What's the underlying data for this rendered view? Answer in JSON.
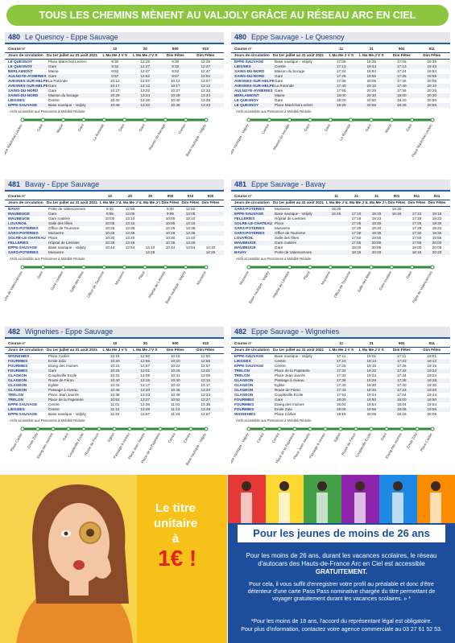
{
  "header": {
    "title": "TOUS LES CHEMINS MÈNENT AU VALJOLY GRÂCE AU RÉSEAU ARC EN CIEL"
  },
  "panels": [
    {
      "line": "480",
      "title": "Le Quesnoy - Eppe Sauvage",
      "course_label": "Course n°",
      "days_label": "Jours de circulation",
      "period": "Du 1er juillet au 31 août 2021",
      "courses": [
        "10",
        "20",
        "900",
        "910"
      ],
      "days": [
        "L Ma Me J V S",
        "L Ma Me J V S",
        "Dim Fêtes",
        "Dim Fêtes"
      ],
      "rows": [
        [
          "LE QUESNOY",
          "Place Maréchal Leclerc",
          "9:30",
          "12:25",
          "9:30",
          "12:25"
        ],
        [
          "LE QUESNOY",
          "Gare",
          "9:32",
          "12:27",
          "9:32",
          "12:27"
        ],
        [
          "BERLAIMONT",
          "Mairie",
          "9:52",
          "12:47",
          "9:52",
          "12:47"
        ],
        [
          "AULNOYE-AYMERIES",
          "Gare",
          "9:57",
          "12:52",
          "9:57",
          "12:52"
        ],
        [
          "AVESNES-SUR-HELPE",
          "La Rotonde",
          "10:12",
          "13:07",
          "10:12",
          "13:07"
        ],
        [
          "AVESNES-SUR-HELPE",
          "Gare",
          "10:17",
          "13:12",
          "10:17",
          "13:12"
        ],
        [
          "SAINS-DU-NORD",
          "Gare",
          "10:27",
          "13:22",
          "10:27",
          "13:22"
        ],
        [
          "SAINS-DU-NORD",
          "Maison du bocage",
          "10:29",
          "13:24",
          "10:29",
          "13:24"
        ],
        [
          "LIESSIES",
          "Centre",
          "10:40",
          "13:35",
          "10:40",
          "13:35"
        ],
        [
          "EPPE-SAUVAGE",
          "Base nautique - Valjoly",
          "10:48",
          "13:43",
          "10:48",
          "13:43"
        ]
      ],
      "note": "Arrêt accessible aux Personnes à Mobilité Réduite"
    },
    {
      "line": "480",
      "title": "Eppe Sauvage - Le Quesnoy",
      "course_label": "Course n°",
      "days_label": "Jours de circulation",
      "period": "Du 1er juillet au 31 août 2021",
      "courses": [
        "11",
        "21",
        "901",
        "911"
      ],
      "days": [
        "L Ma Me J V S",
        "L Ma Me J V S",
        "Dim Fêtes",
        "Dim Fêtes"
      ],
      "rows": [
        [
          "EPPE-SAUVAGE",
          "Base nautique - Valjoly",
          "17:05",
          "19:35",
          "17:05",
          "19:35"
        ],
        [
          "LIESSIES",
          "Centre",
          "17:13",
          "19:43",
          "17:13",
          "19:43"
        ],
        [
          "SAINS-DU-NORD",
          "Maison du bocage",
          "17:24",
          "19:54",
          "17:24",
          "19:54"
        ],
        [
          "SAINS-DU-NORD",
          "Gare",
          "17:25",
          "19:55",
          "17:25",
          "19:55"
        ],
        [
          "AVESNES-SUR-HELPE",
          "Gare",
          "17:35",
          "20:05",
          "17:35",
          "20:05"
        ],
        [
          "AVESNES-SUR-HELPE",
          "La Rotonde",
          "17:40",
          "20:10",
          "17:40",
          "20:10"
        ],
        [
          "AULNOYE-AYMERIES",
          "Gare",
          "17:55",
          "20:25",
          "17:55",
          "20:25"
        ],
        [
          "BERLAIMONT",
          "Mairie",
          "18:00",
          "20:30",
          "18:00",
          "20:30"
        ],
        [
          "LE QUESNOY",
          "Gare",
          "18:20",
          "20:50",
          "18:20",
          "20:50"
        ],
        [
          "LE QUESNOY",
          "Place Maréchal Leclerc",
          "18:25",
          "20:55",
          "18:25",
          "20:55"
        ]
      ],
      "note": "Arrêt accessible aux Personnes à Mobilité Réduite"
    },
    {
      "line": "481",
      "title": "Bavay - Eppe Sauvage",
      "course_label": "Course n°",
      "days_label": "Jours de circulation",
      "period": "Du 1er juillet au 31 août 2021",
      "courses": [
        "10",
        "20",
        "30",
        "900",
        "910",
        "920"
      ],
      "days": [
        "L Ma Me J V S",
        "L Ma Me J V S",
        "L Ma Me J V S",
        "Dim Fêtes",
        "Dim Fêtes",
        "Dim Fêtes"
      ],
      "rows": [
        [
          "BAVAY",
          "Porte de Valenciennes",
          "9:40",
          "12:50",
          null,
          "9:40",
          "12:50",
          null
        ],
        [
          "MAUBEUGE",
          "Gare",
          "9:55",
          "13:05",
          null,
          "9:55",
          "13:05",
          null
        ],
        [
          "MAUBEUGE",
          "Gare routière",
          "10:00",
          "13:10",
          null,
          "10:00",
          "13:10",
          null
        ],
        [
          "LOUVROIL",
          "Salle des fêtes",
          "10:05",
          "13:15",
          null,
          "10:05",
          "13:15",
          null
        ],
        [
          "SARS-POTERIES",
          "Office de Tourisme",
          "10:25",
          "13:35",
          null,
          "10:25",
          "13:35",
          null
        ],
        [
          "SARS-POTERIES",
          "Musverre",
          "10:26",
          "13:36",
          null,
          "10:26",
          "13:36",
          null
        ],
        [
          "SOLRE-LE-CHATEAU",
          "Place",
          "10:30",
          "13:40",
          null,
          "10:30",
          "13:40",
          null
        ],
        [
          "FELLERIES",
          "Hôpital de Liessies",
          "10:36",
          "13:46",
          null,
          "10:36",
          "13:46",
          null
        ],
        [
          "EPPE-SAUVAGE",
          "Base nautique - Valjoly",
          "10:44",
          "13:54",
          "14:10",
          "10:44",
          "13:54",
          "14:10"
        ],
        [
          "SARS-POTERIES",
          "Musverre",
          null,
          null,
          "14:25",
          null,
          null,
          "14:25"
        ]
      ],
      "note": "Arrêt accessible aux Personnes à Mobilité Réduite"
    },
    {
      "line": "481",
      "title": "Eppe Sauvage - Bavay",
      "course_label": "Course n°",
      "days_label": "Jours de circulation",
      "period": "Du 1er juillet au 31 août 2021",
      "courses": [
        "11",
        "21",
        "31",
        "901",
        "911",
        "921"
      ],
      "days": [
        "L Ma Me J V S",
        "L Ma Me J V S",
        "L Ma Me J V S",
        "Dim Fêtes",
        "Dim Fêtes",
        "Dim Fêtes"
      ],
      "rows": [
        [
          "SARS-POTERIES",
          "Musverre",
          "16:30",
          null,
          null,
          "16:30",
          null,
          null
        ],
        [
          "EPPE-SAUVAGE",
          "Base nautique - Valjoly",
          "16:45",
          "17:10",
          "19:15",
          "16:45",
          "17:10",
          "19:15"
        ],
        [
          "FELLERIES",
          "Hôpital de Liessies",
          null,
          "17:18",
          "19:23",
          null,
          "17:18",
          "19:23"
        ],
        [
          "SOLRE-LE-CHATEAU",
          "Place",
          null,
          "17:25",
          "19:30",
          null,
          "17:25",
          "19:30"
        ],
        [
          "SARS-POTERIES",
          "Musverre",
          null,
          "17:29",
          "19:34",
          null,
          "17:29",
          "19:34"
        ],
        [
          "SARS-POTERIES",
          "Office de Tourisme",
          null,
          "17:30",
          "19:35",
          null,
          "17:30",
          "19:35"
        ],
        [
          "LOUVROIL",
          "Salle des fêtes",
          null,
          "17:50",
          "19:55",
          null,
          "17:50",
          "19:55"
        ],
        [
          "MAUBEUGE",
          "Gare routière",
          null,
          "17:55",
          "20:00",
          null,
          "17:55",
          "20:00"
        ],
        [
          "MAUBEUGE",
          "Gare",
          null,
          "18:00",
          "20:05",
          null,
          "18:00",
          "20:05"
        ],
        [
          "BAVAY",
          "Porte de Valenciennes",
          null,
          "18:15",
          "20:20",
          null,
          "18:15",
          "20:20"
        ]
      ],
      "note": "Arrêt accessible aux Personnes à Mobilité Réduite"
    },
    {
      "line": "482",
      "title": "Wignehies - Eppe Sauvage",
      "course_label": "Course n°",
      "days_label": "Jours de circulation",
      "period": "Du 1er juillet au 31 août 2021",
      "courses": [
        "10",
        "20",
        "900",
        "910"
      ],
      "days": [
        "L Ma Me J V S",
        "L Ma Me J V S",
        "Dim Fêtes",
        "Dim Fêtes"
      ],
      "rows": [
        [
          "WIGNEHIES",
          "Place Carlier",
          "10:15",
          "12:50",
          "10:15",
          "12:50"
        ],
        [
          "FOURMIES",
          "Emile Zola",
          "10:20",
          "12:55",
          "10:20",
          "12:55"
        ],
        [
          "FOURMIES",
          "Etang des moines",
          "10:22",
          "12:57",
          "10:22",
          "12:57"
        ],
        [
          "FOURMIES",
          "Gare",
          "10:25",
          "13:01",
          "10:25",
          "13:01"
        ],
        [
          "GLAGEON",
          "Coupleville Ecole",
          "10:31",
          "13:06",
          "10:31",
          "13:06"
        ],
        [
          "GLAGEON",
          "Route de Féron",
          "10:40",
          "13:15",
          "10:40",
          "13:15"
        ],
        [
          "GLAGEON",
          "Eglise",
          "10:42",
          "13:17",
          "10:42",
          "13:17"
        ],
        [
          "GLAGEON",
          "Passage à niveau",
          "10:45",
          "13:20",
          "10:45",
          "13:20"
        ],
        [
          "TRELON",
          "Place Jean Jaurès",
          "10:48",
          "13:23",
          "10:48",
          "13:23"
        ],
        [
          "TRELON",
          "Place de la Papeterie",
          "10:52",
          "13:27",
          "10:52",
          "13:27"
        ],
        [
          "EPPE-SAUVAGE",
          "Centre",
          "11:01",
          "13:36",
          "11:01",
          "13:36"
        ],
        [
          "LIESSIES",
          "Centre",
          "11:14",
          "13:49",
          "11:14",
          "13:49"
        ],
        [
          "EPPE-SAUVAGE",
          "Base nautique - Valjoly",
          "11:22",
          "13:57",
          "11:22",
          "13:57"
        ]
      ],
      "note": "Arrêt accessible aux Personnes à Mobilité Réduite"
    },
    {
      "line": "482",
      "title": "Eppe Sauvage - Wignehies",
      "course_label": "Course n°",
      "days_label": "Jours de circulation",
      "period": "Du 1er juillet au 31 août 2021",
      "courses": [
        "11",
        "21",
        "901",
        "911"
      ],
      "days": [
        "L Ma Me J V S",
        "L Ma Me J V S",
        "Dim Fêtes",
        "Dim Fêtes"
      ],
      "rows": [
        [
          "EPPE-SAUVAGE",
          "Base nautique - Valjoly",
          "17:11",
          "19:01",
          "17:11",
          "19:01"
        ],
        [
          "LIESSIES",
          "Centre",
          "17:23",
          "19:13",
          "17:23",
          "19:13"
        ],
        [
          "EPPE-SAUVAGE",
          "Centre",
          "17:25",
          "19:15",
          "17:25",
          "19:15"
        ],
        [
          "TRELON",
          "Place de la Papeterie",
          "17:32",
          "19:22",
          "17:32",
          "19:22"
        ],
        [
          "TRELON",
          "Place Jean Jaurès",
          "17:34",
          "19:24",
          "17:34",
          "19:24"
        ],
        [
          "GLAGEON",
          "Passage à niveau",
          "17:38",
          "19:28",
          "17:38",
          "19:28"
        ],
        [
          "GLAGEON",
          "Eglise",
          "17:40",
          "19:30",
          "17:40",
          "19:30"
        ],
        [
          "GLAGEON",
          "Route de Féron",
          "17:43",
          "19:33",
          "17:43",
          "19:33"
        ],
        [
          "GLAGEON",
          "Coupleville Ecole",
          "17:54",
          "19:44",
          "17:54",
          "19:44"
        ],
        [
          "FOURMIES",
          "Gare",
          "18:00",
          "19:50",
          "18:00",
          "19:50"
        ],
        [
          "FOURMIES",
          "Etang des moines",
          "18:04",
          "19:54",
          "18:04",
          "19:54"
        ],
        [
          "FOURMIES",
          "Emile Zola",
          "18:06",
          "19:56",
          "18:06",
          "19:56"
        ],
        [
          "WIGNEHIES",
          "Place Carlier",
          "18:16",
          "20:06",
          "18:16",
          "20:06"
        ]
      ],
      "note": "Arrêt accessible aux Personnes à Mobilité Réduite"
    }
  ],
  "promo_left": {
    "line1": "Le titre",
    "line2": "unitaire",
    "line3": "à",
    "price": "1€ !"
  },
  "promo_right": {
    "headline": "Pour les jeunes de moins de 26 ans",
    "p1": "Pour les moins de 26 ans, durant les vacances scolaires, le réseau d'autocars des Hauts-de-France Arc en Ciel est accessible",
    "p1_strong": "GRATUITEMENT.",
    "p2": "Pour cela, il vous suffit d'enregistrer votre profil au préalable et donc d'être détenteur d'une carte Pass Pass nominative chargée du titre permettant de voyager gratuitement durant les vacances scolaires. » *",
    "p3": "*Pour les moins de 18 ans, l'accord du représentant légal est obligatoire.",
    "p4": "Pour plus d'information, contactez votre agence commerciale au 03 27 61 52 53."
  }
}
